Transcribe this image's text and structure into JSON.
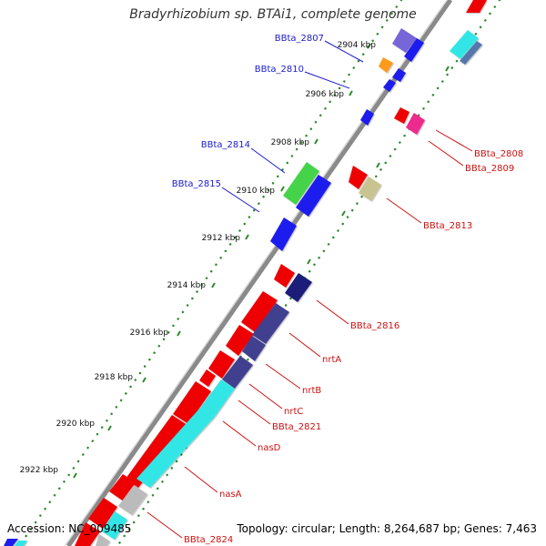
{
  "title": "Bradyrhizobium sp. BTAi1, complete genome",
  "footer": {
    "accession": "Accession: NC_009485",
    "summary": "Topology: circular; Length: 8,264,687 bp; Genes: 7,463"
  },
  "ticks": [
    "2904 kbp",
    "2906 kbp",
    "2908 kbp",
    "2910 kbp",
    "2912 kbp",
    "2914 kbp",
    "2916 kbp",
    "2918 kbp",
    "2920 kbp",
    "2922 kbp"
  ],
  "left_labels": [
    "BBta_2807",
    "BBta_2810",
    "BBta_2814",
    "BBta_2815"
  ],
  "right_labels": [
    "BBta_2808",
    "BBta_2809",
    "BBta_2813",
    "BBta_2816",
    "nrtA",
    "nrtB",
    "nrtC",
    "BBta_2821",
    "nasD",
    "nasA",
    "BBta_2824"
  ],
  "colors": {
    "red": "#ee0000",
    "blue": "#1a1aee",
    "navy": "#1a1a7a",
    "slate": "#3f3f8f",
    "cyan": "#33e6e6",
    "green": "#44d44a",
    "orange": "#ff9a1a",
    "purple": "#7766d8",
    "magenta": "#ee2a8e",
    "khaki": "#c8c490",
    "grey": "#bbbbbb",
    "dots": "#2b8a2b",
    "left_label": "#1a1acc",
    "right_label": "#cc1111",
    "backbone": "#888888"
  }
}
